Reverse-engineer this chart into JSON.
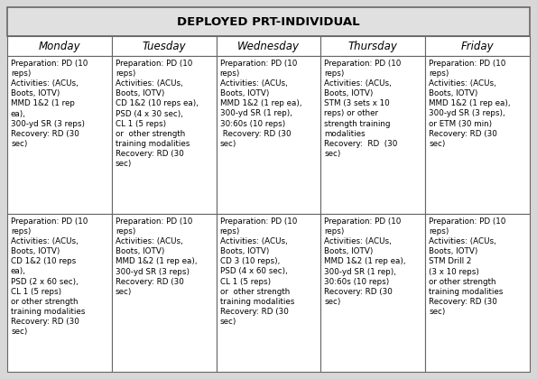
{
  "title": "DEPLOYED PRT-INDIVIDUAL",
  "columns": [
    "Monday",
    "Tuesday",
    "Wednesday",
    "Thursday",
    "Friday"
  ],
  "row1": [
    "Preparation: PD (10\nreps)\nActivities: (ACUs,\nBoots, IOTV)\nMMD 1&2 (1 rep\nea),\n300-yd SR (3 reps)\nRecovery: RD (30\nsec)",
    "Preparation: PD (10\nreps)\nActivities: (ACUs,\nBoots, IOTV)\nCD 1&2 (10 reps ea),\nPSD (4 x 30 sec),\nCL 1 (5 reps)\nor  other strength\ntraining modalities\nRecovery: RD (30\nsec)",
    "Preparation: PD (10\nreps)\nActivities: (ACUs,\nBoots, IOTV)\nMMD 1&2 (1 rep ea),\n300-yd SR (1 rep),\n30:60s (10 reps)\n Recovery: RD (30\nsec)",
    "Preparation: PD (10\nreps)\nActivities: (ACUs,\nBoots, IOTV)\nSTM (3 sets x 10\nreps) or other\nstrength training\nmodalities\nRecovery:  RD  (30\nsec)",
    "Preparation: PD (10\nreps)\nActivities: (ACUs,\nBoots, IOTV)\nMMD 1&2 (1 rep ea),\n300-yd SR (3 reps),\nor ETM (30 min)\nRecovery: RD (30\nsec)"
  ],
  "row2": [
    "Preparation: PD (10\nreps)\nActivities: (ACUs,\nBoots, IOTV)\nCD 1&2 (10 reps\nea),\nPSD (2 x 60 sec),\nCL 1 (5 reps)\nor other strength\ntraining modalities\nRecovery: RD (30\nsec)",
    "Preparation: PD (10\nreps)\nActivities: (ACUs,\nBoots, IOTV)\nMMD 1&2 (1 rep ea),\n300-yd SR (3 reps)\nRecovery: RD (30\nsec)",
    "Preparation: PD (10\nreps)\nActivities: (ACUs,\nBoots, IOTV)\nCD 3 (10 reps),\nPSD (4 x 60 sec),\nCL 1 (5 reps)\nor  other strength\ntraining modalities\nRecovery: RD (30\nsec)",
    "Preparation: PD (10\nreps)\nActivities: (ACUs,\nBoots, IOTV)\nMMD 1&2 (1 rep ea),\n300-yd SR (1 rep),\n30:60s (10 reps)\nRecovery: RD (30\nsec)",
    "Preparation: PD (10\nreps)\nActivities: (ACUs,\nBoots, IOTV)\nSTM Drill 2\n(3 x 10 reps)\nor other strength\ntraining modalities\nRecovery: RD (30\nsec)"
  ],
  "title_bg": "#e0e0e0",
  "header_bg": "#ffffff",
  "cell_bg": "#ffffff",
  "border_color": "#666666",
  "title_fontsize": 9.5,
  "header_fontsize": 8.5,
  "cell_fontsize": 6.3,
  "outer_bg": "#d8d8d8",
  "fig_width": 5.95,
  "fig_height": 4.2,
  "dpi": 100
}
